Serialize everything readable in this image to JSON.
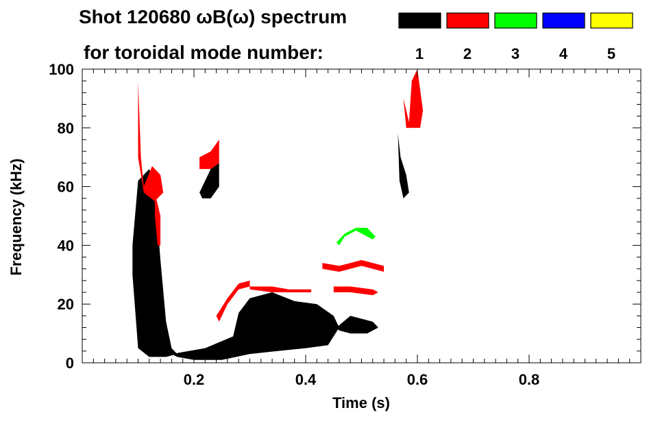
{
  "chart_data": {
    "type": "heatmap",
    "title": "Shot 120680 ωB(ω) spectrum",
    "subtitle": "for toroidal mode number:",
    "xlabel": "Time (s)",
    "ylabel": "Frequency (kHz)",
    "xlim": [
      0.0,
      1.0
    ],
    "ylim": [
      0,
      100
    ],
    "xticks": [
      0.2,
      0.4,
      0.6,
      0.8
    ],
    "xtick_labels": [
      "0.2",
      "0.4",
      "0.6",
      "0.8"
    ],
    "yticks": [
      0,
      20,
      40,
      60,
      80,
      100
    ],
    "ytick_labels": [
      "0",
      "20",
      "40",
      "60",
      "80",
      "100"
    ],
    "legend_position": "top-right",
    "legend": [
      {
        "label": "1",
        "color": "#000000"
      },
      {
        "label": "2",
        "color": "#ff0000"
      },
      {
        "label": "3",
        "color": "#00ff00"
      },
      {
        "label": "4",
        "color": "#0000ff"
      },
      {
        "label": "5",
        "color": "#ffff00"
      }
    ],
    "regions": [
      {
        "mode": 1,
        "poly": [
          [
            0.09,
            40
          ],
          [
            0.1,
            62
          ],
          [
            0.12,
            66
          ],
          [
            0.13,
            60
          ],
          [
            0.14,
            35
          ],
          [
            0.15,
            14
          ],
          [
            0.16,
            5
          ],
          [
            0.17,
            3
          ],
          [
            0.15,
            2
          ],
          [
            0.12,
            2
          ],
          [
            0.1,
            5
          ],
          [
            0.09,
            30
          ]
        ]
      },
      {
        "mode": 1,
        "poly": [
          [
            0.16,
            3
          ],
          [
            0.22,
            5
          ],
          [
            0.27,
            9
          ],
          [
            0.28,
            17
          ],
          [
            0.3,
            22
          ],
          [
            0.34,
            24
          ],
          [
            0.38,
            21
          ],
          [
            0.42,
            20
          ],
          [
            0.45,
            16
          ],
          [
            0.46,
            12
          ],
          [
            0.44,
            6
          ],
          [
            0.4,
            5
          ],
          [
            0.35,
            4
          ],
          [
            0.3,
            3
          ],
          [
            0.25,
            1
          ],
          [
            0.2,
            1
          ],
          [
            0.17,
            2
          ]
        ]
      },
      {
        "mode": 1,
        "poly": [
          [
            0.21,
            58
          ],
          [
            0.23,
            66
          ],
          [
            0.245,
            68
          ],
          [
            0.245,
            60
          ],
          [
            0.23,
            56
          ],
          [
            0.215,
            56
          ]
        ]
      },
      {
        "mode": 1,
        "poly": [
          [
            0.455,
            12
          ],
          [
            0.48,
            16
          ],
          [
            0.52,
            14
          ],
          [
            0.53,
            12
          ],
          [
            0.51,
            10
          ],
          [
            0.48,
            10
          ],
          [
            0.46,
            11
          ]
        ]
      },
      {
        "mode": 1,
        "poly": [
          [
            0.565,
            78
          ],
          [
            0.57,
            70
          ],
          [
            0.58,
            64
          ],
          [
            0.585,
            58
          ],
          [
            0.575,
            56
          ],
          [
            0.568,
            62
          ]
        ]
      },
      {
        "mode": 2,
        "poly": [
          [
            0.1,
            96
          ],
          [
            0.105,
            70
          ],
          [
            0.11,
            60
          ],
          [
            0.125,
            67
          ],
          [
            0.14,
            64
          ],
          [
            0.145,
            58
          ],
          [
            0.13,
            55
          ],
          [
            0.11,
            58
          ],
          [
            0.1,
            70
          ]
        ]
      },
      {
        "mode": 2,
        "poly": [
          [
            0.13,
            58
          ],
          [
            0.14,
            50
          ],
          [
            0.14,
            40
          ],
          [
            0.135,
            40
          ],
          [
            0.13,
            50
          ]
        ]
      },
      {
        "mode": 2,
        "poly": [
          [
            0.21,
            70
          ],
          [
            0.23,
            72
          ],
          [
            0.245,
            76
          ],
          [
            0.245,
            68
          ],
          [
            0.23,
            66
          ],
          [
            0.21,
            66
          ]
        ]
      },
      {
        "mode": 2,
        "poly": [
          [
            0.24,
            16
          ],
          [
            0.26,
            22
          ],
          [
            0.28,
            27
          ],
          [
            0.3,
            28
          ],
          [
            0.3,
            26
          ],
          [
            0.28,
            25
          ],
          [
            0.26,
            20
          ],
          [
            0.245,
            14
          ]
        ]
      },
      {
        "mode": 2,
        "poly": [
          [
            0.3,
            26
          ],
          [
            0.34,
            26
          ],
          [
            0.37,
            25
          ],
          [
            0.41,
            25
          ],
          [
            0.41,
            24
          ],
          [
            0.37,
            24
          ],
          [
            0.34,
            24
          ],
          [
            0.3,
            25
          ]
        ]
      },
      {
        "mode": 2,
        "poly": [
          [
            0.43,
            34
          ],
          [
            0.46,
            33
          ],
          [
            0.5,
            35
          ],
          [
            0.54,
            33
          ],
          [
            0.54,
            31
          ],
          [
            0.5,
            33
          ],
          [
            0.46,
            31
          ],
          [
            0.43,
            32
          ]
        ]
      },
      {
        "mode": 2,
        "poly": [
          [
            0.45,
            26
          ],
          [
            0.48,
            26
          ],
          [
            0.52,
            25
          ],
          [
            0.53,
            24
          ],
          [
            0.52,
            23
          ],
          [
            0.48,
            24
          ],
          [
            0.45,
            24
          ]
        ]
      },
      {
        "mode": 2,
        "poly": [
          [
            0.575,
            90
          ],
          [
            0.585,
            82
          ],
          [
            0.59,
            96
          ],
          [
            0.6,
            100
          ],
          [
            0.61,
            86
          ],
          [
            0.605,
            80
          ],
          [
            0.595,
            80
          ],
          [
            0.58,
            80
          ]
        ]
      },
      {
        "mode": 3,
        "poly": [
          [
            0.455,
            41
          ],
          [
            0.47,
            44
          ],
          [
            0.49,
            46
          ],
          [
            0.51,
            46
          ],
          [
            0.525,
            43
          ],
          [
            0.52,
            42
          ],
          [
            0.49,
            45
          ],
          [
            0.47,
            43
          ],
          [
            0.46,
            40
          ]
        ]
      }
    ]
  }
}
